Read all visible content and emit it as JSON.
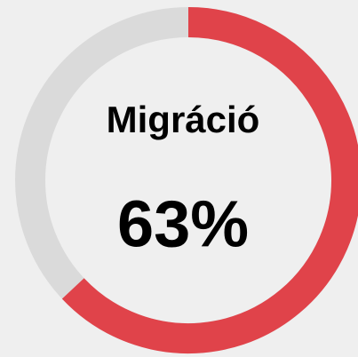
{
  "chart_data": {
    "type": "donut",
    "title": "Migráció",
    "values": [
      63
    ],
    "value_labels": [
      "63%"
    ],
    "ylim": [
      0,
      100
    ],
    "color": "#e0434a",
    "track_color": "#dadada"
  }
}
